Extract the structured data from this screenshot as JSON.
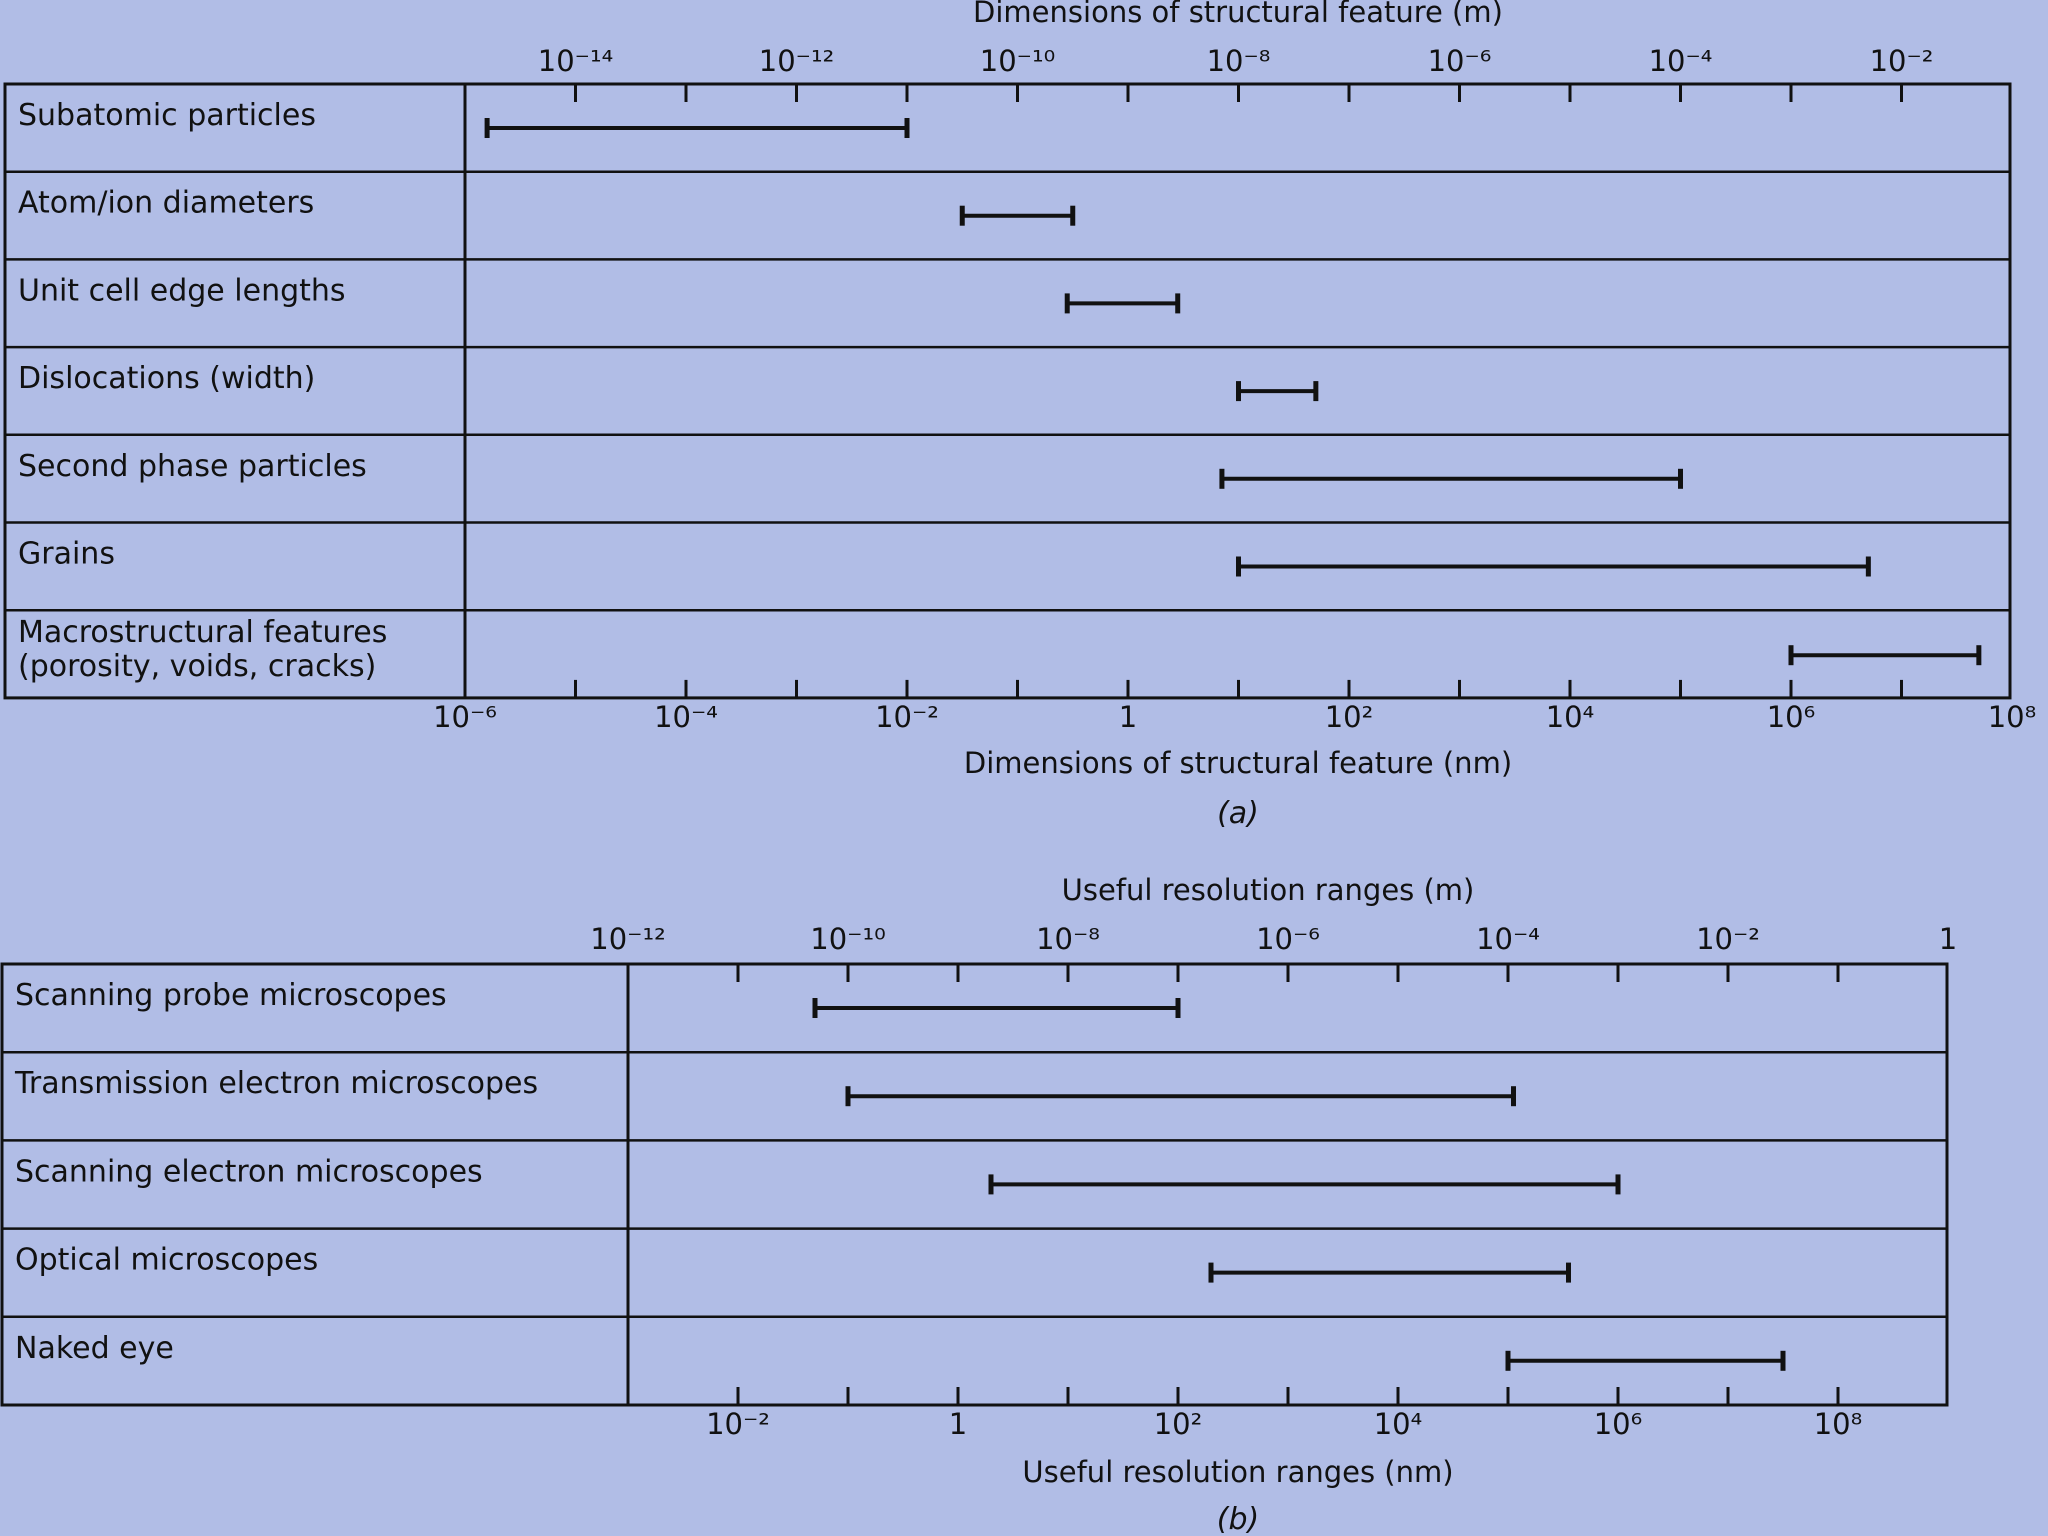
{
  "chart_data": [
    {
      "type": "range",
      "panel": "(a)",
      "top_axis": {
        "title": "Dimensions of structural feature (m)",
        "ticks": [
          {
            "exp": -14,
            "label": "10⁻¹⁴"
          },
          {
            "exp": -12,
            "label": "10⁻¹²"
          },
          {
            "exp": -10,
            "label": "10⁻¹⁰"
          },
          {
            "exp": -8,
            "label": "10⁻⁸"
          },
          {
            "exp": -6,
            "label": "10⁻⁶"
          },
          {
            "exp": -4,
            "label": "10⁻⁴"
          },
          {
            "exp": -2,
            "label": "10⁻²"
          }
        ]
      },
      "bottom_axis": {
        "title": "Dimensions of structural feature (nm)",
        "ticks": [
          {
            "exp": -6,
            "label": "10⁻⁶"
          },
          {
            "exp": -4,
            "label": "10⁻⁴"
          },
          {
            "exp": -2,
            "label": "10⁻²"
          },
          {
            "exp": 0,
            "label": "1"
          },
          {
            "exp": 2,
            "label": "10²"
          },
          {
            "exp": 4,
            "label": "10⁴"
          },
          {
            "exp": 6,
            "label": "10⁶"
          },
          {
            "exp": 8,
            "label": "10⁸"
          }
        ]
      },
      "xlim_log10_nm": [
        -6,
        8
      ],
      "rows": [
        {
          "label": "Subatomic particles",
          "from": -5.8,
          "to": -2.0
        },
        {
          "label": "Atom/ion diameters",
          "from": -1.5,
          "to": -0.5
        },
        {
          "label": "Unit cell edge lengths",
          "from": -0.55,
          "to": 0.45
        },
        {
          "label": "Dislocations (width)",
          "from": 1.0,
          "to": 1.7
        },
        {
          "label": "Second phase particles",
          "from": 0.85,
          "to": 5.0
        },
        {
          "label": "Grains",
          "from": 1.0,
          "to": 6.7
        },
        {
          "label": "Macrostructural features\n(porosity, voids, cracks)",
          "from": 6.0,
          "to": 7.7
        }
      ]
    },
    {
      "type": "range",
      "panel": "(b)",
      "top_axis": {
        "title": "Useful resolution ranges (m)",
        "ticks": [
          {
            "exp": -12,
            "label": "10⁻¹²"
          },
          {
            "exp": -10,
            "label": "10⁻¹⁰"
          },
          {
            "exp": -8,
            "label": "10⁻⁸"
          },
          {
            "exp": -6,
            "label": "10⁻⁶"
          },
          {
            "exp": -4,
            "label": "10⁻⁴"
          },
          {
            "exp": -2,
            "label": "10⁻²"
          },
          {
            "exp": 0,
            "label": "1"
          }
        ]
      },
      "bottom_axis": {
        "title": "Useful resolution ranges (nm)",
        "ticks": [
          {
            "exp": -2,
            "label": "10⁻²"
          },
          {
            "exp": 0,
            "label": "1"
          },
          {
            "exp": 2,
            "label": "10²"
          },
          {
            "exp": 4,
            "label": "10⁴"
          },
          {
            "exp": 6,
            "label": "10⁶"
          },
          {
            "exp": 8,
            "label": "10⁸"
          }
        ]
      },
      "xlim_log10_nm": [
        -3,
        9
      ],
      "rows": [
        {
          "label": "Scanning probe microscopes",
          "from": -1.3,
          "to": 2.0
        },
        {
          "label": "Transmission electron microscopes",
          "from": -1.0,
          "to": 5.05
        },
        {
          "label": "Scanning electron microscopes",
          "from": 0.3,
          "to": 6.0
        },
        {
          "label": "Optical microscopes",
          "from": 2.3,
          "to": 5.55
        },
        {
          "label": "Naked eye",
          "from": 5.0,
          "to": 7.5
        }
      ]
    }
  ],
  "captions": {
    "a": "(a)",
    "b": "(b)"
  }
}
